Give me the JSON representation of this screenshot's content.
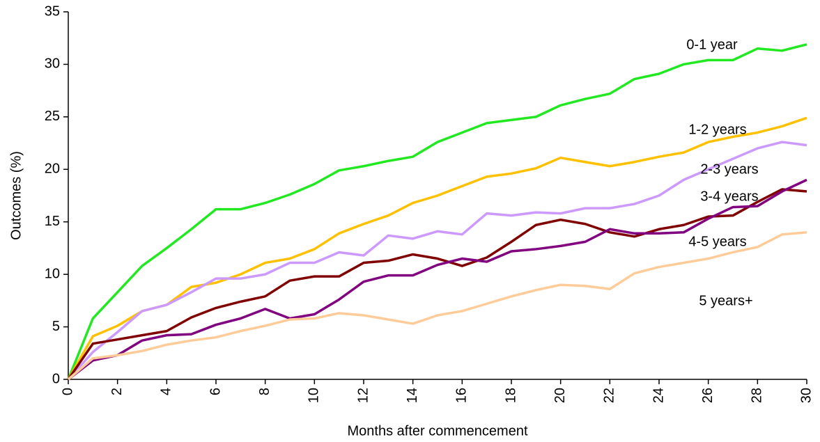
{
  "chart_data": {
    "type": "line",
    "x_label": "Months after commencement",
    "y_label": "Outcomes (%)",
    "x": [
      0,
      1,
      2,
      3,
      4,
      5,
      6,
      7,
      8,
      9,
      10,
      11,
      12,
      13,
      14,
      15,
      16,
      17,
      18,
      19,
      20,
      21,
      22,
      23,
      24,
      25,
      26,
      27,
      28,
      29,
      30
    ],
    "xlim": [
      0,
      30
    ],
    "xticks": [
      0,
      2,
      4,
      6,
      8,
      10,
      12,
      14,
      16,
      18,
      20,
      22,
      24,
      26,
      28,
      30
    ],
    "ylim": [
      0,
      35
    ],
    "yticks": [
      0,
      5,
      10,
      15,
      20,
      25,
      30,
      35
    ],
    "grid": false,
    "series": [
      {
        "name": "0-1 year",
        "color": "#22e822",
        "values": [
          0,
          5.8,
          8.3,
          10.8,
          12.5,
          14.3,
          16.2,
          16.2,
          16.8,
          17.6,
          18.6,
          19.9,
          20.3,
          20.8,
          21.2,
          22.6,
          23.5,
          24.4,
          24.7,
          25.0,
          26.1,
          26.7,
          27.2,
          28.6,
          29.1,
          30.0,
          30.4,
          30.4,
          31.5,
          31.3,
          31.9
        ]
      },
      {
        "name": "1-2 years",
        "color": "#ffc000",
        "values": [
          0,
          4.1,
          5.1,
          6.5,
          7.1,
          8.8,
          9.2,
          10.0,
          11.1,
          11.5,
          12.4,
          13.9,
          14.8,
          15.6,
          16.8,
          17.5,
          18.4,
          19.3,
          19.6,
          20.1,
          21.1,
          20.7,
          20.3,
          20.7,
          21.2,
          21.6,
          22.6,
          23.1,
          23.5,
          24.1,
          24.9
        ]
      },
      {
        "name": "2-3 years",
        "color": "#cc99ff",
        "values": [
          0,
          2.6,
          4.5,
          6.5,
          7.1,
          8.3,
          9.6,
          9.6,
          10.0,
          11.1,
          11.1,
          12.1,
          11.8,
          13.7,
          13.4,
          14.1,
          13.8,
          15.8,
          15.6,
          15.9,
          15.8,
          16.3,
          16.3,
          16.7,
          17.5,
          19.0,
          20.0,
          21.0,
          22.0,
          22.6,
          22.3
        ]
      },
      {
        "name": "3-4 years",
        "color": "#800000",
        "values": [
          0,
          3.4,
          3.8,
          4.2,
          4.6,
          5.9,
          6.8,
          7.4,
          7.9,
          9.4,
          9.8,
          9.8,
          11.1,
          11.3,
          11.9,
          11.5,
          10.8,
          11.6,
          13.1,
          14.7,
          15.2,
          14.8,
          14.0,
          13.6,
          14.3,
          14.7,
          15.5,
          15.6,
          16.9,
          18.1,
          17.9
        ]
      },
      {
        "name": "4-5 years",
        "color": "#800080",
        "values": [
          0,
          1.8,
          2.3,
          3.7,
          4.2,
          4.3,
          5.2,
          5.8,
          6.7,
          5.8,
          6.2,
          7.6,
          9.3,
          9.9,
          9.9,
          10.9,
          11.5,
          11.2,
          12.2,
          12.4,
          12.7,
          13.1,
          14.3,
          13.9,
          13.9,
          14.0,
          15.3,
          16.4,
          16.5,
          17.9,
          19.0
        ]
      },
      {
        "name": "5 years+",
        "color": "#ffcc99",
        "values": [
          0,
          2.0,
          2.3,
          2.7,
          3.3,
          3.7,
          4.0,
          4.6,
          5.1,
          5.7,
          5.8,
          6.3,
          6.1,
          5.7,
          5.3,
          6.1,
          6.5,
          7.2,
          7.9,
          8.5,
          9.0,
          8.9,
          8.6,
          10.1,
          10.7,
          11.1,
          11.5,
          12.1,
          12.6,
          13.8,
          14.0
        ]
      }
    ]
  }
}
